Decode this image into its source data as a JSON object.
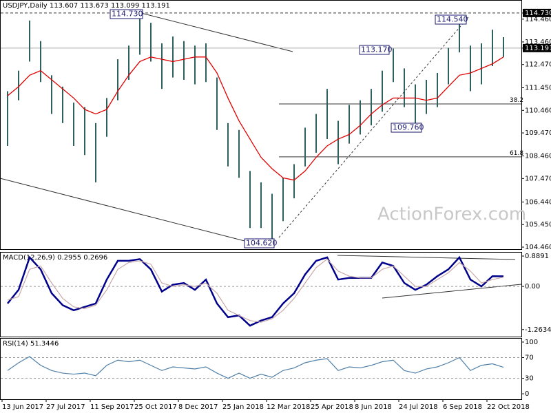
{
  "chart_data": [
    {
      "type": "range",
      "title": "USDJPY,Daily 113.607 113.673 113.099 113.191",
      "watermark": "ActionForex.com",
      "categories": [
        "13 Jun 2017",
        null,
        null,
        null,
        "27 Jul 2017",
        null,
        null,
        null,
        "11 Sep 2017",
        null,
        null,
        null,
        "25 Oct 2017",
        null,
        null,
        null,
        "8 Dec 2017",
        null,
        null,
        null,
        "25 Jan 2018",
        null,
        null,
        null,
        "12 Mar 2018",
        null,
        null,
        null,
        "25 Apr 2018",
        null,
        null,
        null,
        "8 Jun 2018",
        null,
        null,
        null,
        "24 Jul 2018",
        null,
        null,
        null,
        "6 Sep 2018",
        null,
        null,
        null,
        "22 Oct 2018",
        null
      ],
      "high": [
        111.3,
        112.2,
        114.4,
        113.5,
        112.0,
        111.5,
        110.8,
        110.6,
        109.9,
        111.0,
        112.7,
        113.3,
        114.73,
        114.3,
        113.4,
        113.7,
        113.5,
        113.3,
        113.4,
        111.9,
        109.9,
        109.6,
        107.8,
        107.3,
        106.8,
        107.5,
        108.1,
        109.7,
        110.3,
        111.4,
        110.0,
        110.7,
        110.9,
        111.4,
        112.2,
        113.17,
        112.3,
        111.6,
        111.8,
        112.1,
        113.2,
        114.54,
        113.3,
        113.4,
        114.0,
        113.67
      ],
      "low": [
        108.9,
        110.9,
        112.6,
        111.7,
        110.3,
        109.9,
        108.9,
        108.5,
        107.3,
        109.3,
        110.9,
        111.8,
        112.9,
        112.6,
        111.4,
        111.9,
        111.8,
        111.6,
        111.7,
        109.6,
        108.0,
        107.5,
        105.3,
        105.3,
        104.62,
        105.6,
        106.6,
        108.0,
        108.6,
        109.2,
        108.1,
        109.0,
        109.4,
        109.8,
        110.4,
        111.7,
        110.6,
        109.76,
        110.3,
        110.6,
        111.6,
        113.0,
        111.3,
        111.6,
        112.4,
        112.8
      ],
      "color": "#2f5f5f",
      "ma": {
        "color": "#e00000",
        "values": [
          111.1,
          111.5,
          112.0,
          112.2,
          111.8,
          111.4,
          111.0,
          110.5,
          110.3,
          110.5,
          111.3,
          112.0,
          112.6,
          112.8,
          112.7,
          112.6,
          112.7,
          112.8,
          112.8,
          112.1,
          111.0,
          110.0,
          109.2,
          108.4,
          107.9,
          107.5,
          107.4,
          107.8,
          108.4,
          108.9,
          109.2,
          109.4,
          109.8,
          110.3,
          110.7,
          111.0,
          111.0,
          111.0,
          110.9,
          111.0,
          111.5,
          112.0,
          112.1,
          112.3,
          112.5,
          112.8
        ]
      },
      "ylim": [
        104.37,
        115.3
      ],
      "yticks": [
        {
          "value": 114.73,
          "label": "114.730"
        },
        {
          "value": 114.46,
          "label": "114.460"
        },
        {
          "value": 113.46,
          "label": "113.460"
        },
        113.191,
        {
          "value": 112.47,
          "label": "112.470"
        },
        {
          "value": 111.45,
          "label": "111.450"
        },
        {
          "value": 110.46,
          "label": "110.460"
        },
        {
          "value": 109.47,
          "label": "109.470"
        },
        {
          "value": 108.46,
          "label": "108.460"
        },
        {
          "value": 107.47,
          "label": "107.470"
        },
        {
          "value": 106.44,
          "label": "106.440"
        },
        {
          "value": 105.45,
          "label": "105.450"
        },
        {
          "value": 104.46,
          "label": "104.460"
        }
      ],
      "levels": [
        114.73,
        113.191,
        110.74,
        108.42
      ],
      "annotations": [
        "114.730",
        "113.170",
        "114.540",
        "109.760",
        "104.620",
        "38.2",
        "61.8"
      ]
    },
    {
      "type": "line",
      "title": "MACD(12,26,9) 0.2955 0.2696",
      "series": [
        {
          "color": "#00008b",
          "values": [
            -0.5,
            -0.1,
            0.85,
            0.5,
            -0.2,
            -0.55,
            -0.7,
            -0.6,
            -0.5,
            0.2,
            0.75,
            0.75,
            0.8,
            0.5,
            -0.15,
            0.05,
            0.1,
            -0.1,
            0.2,
            -0.5,
            -0.9,
            -0.85,
            -1.15,
            -1.0,
            -0.9,
            -0.5,
            -0.2,
            0.35,
            0.75,
            0.85,
            0.2,
            0.25,
            0.25,
            0.25,
            0.7,
            0.6,
            0.1,
            -0.1,
            0.05,
            0.3,
            0.5,
            0.85,
            0.2,
            0.0,
            0.3,
            0.2955
          ]
        },
        {
          "color": "#c8a8a8",
          "values": [
            -0.4,
            -0.3,
            0.5,
            0.6,
            0.1,
            -0.35,
            -0.6,
            -0.65,
            -0.55,
            -0.1,
            0.5,
            0.7,
            0.75,
            0.65,
            0.1,
            0.0,
            0.05,
            0.0,
            0.1,
            -0.2,
            -0.7,
            -0.85,
            -1.0,
            -1.05,
            -0.95,
            -0.7,
            -0.35,
            0.1,
            0.55,
            0.8,
            0.45,
            0.3,
            0.25,
            0.25,
            0.5,
            0.6,
            0.3,
            0.0,
            0.0,
            0.2,
            0.4,
            0.7,
            0.45,
            0.1,
            0.2,
            0.2696
          ]
        }
      ],
      "ylim": [
        -1.47,
        1.01
      ],
      "yticks": [
        0.8891,
        {
          "value": 0,
          "label": "0.00"
        },
        -1.2634
      ],
      "levels": [
        0
      ]
    },
    {
      "type": "line",
      "title": "RSI(14) 51.3446",
      "series": [
        {
          "color": "#4f7fa8",
          "values": [
            45,
            60,
            72,
            55,
            45,
            40,
            38,
            40,
            35,
            55,
            65,
            62,
            65,
            55,
            45,
            52,
            50,
            48,
            52,
            40,
            30,
            40,
            30,
            38,
            32,
            45,
            50,
            60,
            65,
            68,
            45,
            52,
            50,
            55,
            62,
            65,
            45,
            40,
            48,
            52,
            60,
            70,
            45,
            55,
            58,
            51.3446
          ]
        }
      ],
      "ylim": [
        -10.5,
        107.9
      ],
      "yticks": [
        100,
        70,
        30,
        0
      ],
      "levels": [
        70,
        30
      ]
    }
  ]
}
